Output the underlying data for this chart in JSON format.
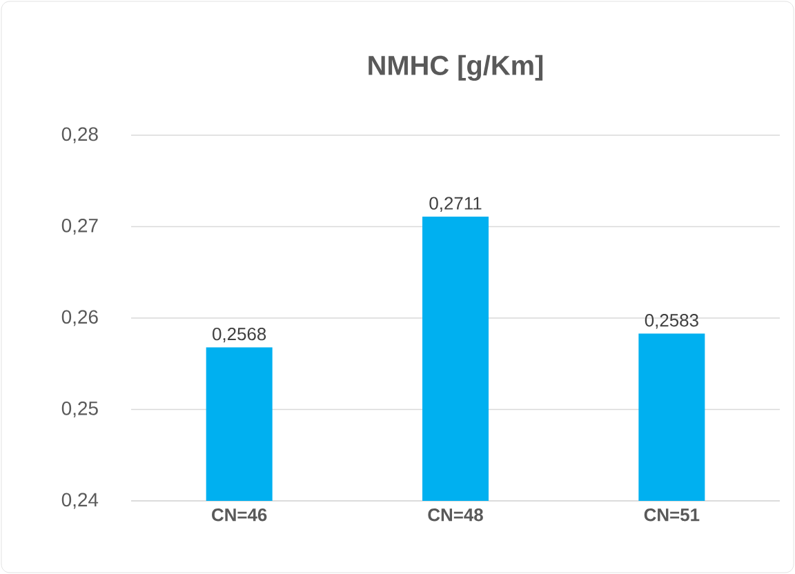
{
  "chart_data": {
    "type": "bar",
    "title": "NMHC [g/Km]",
    "categories": [
      "CN=46",
      "CN=48",
      "CN=51"
    ],
    "values": [
      0.2568,
      0.2711,
      0.2583
    ],
    "value_labels": [
      "0,2568",
      "0,2711",
      "0,2583"
    ],
    "color": "#00b0f0",
    "ylim": [
      0.24,
      0.28
    ],
    "yticks": [
      {
        "value": 0.24,
        "label": "0,24"
      },
      {
        "value": 0.25,
        "label": "0,25"
      },
      {
        "value": 0.26,
        "label": "0,26"
      },
      {
        "value": 0.27,
        "label": "0,27"
      },
      {
        "value": 0.28,
        "label": "0,28"
      }
    ],
    "grid": true
  }
}
